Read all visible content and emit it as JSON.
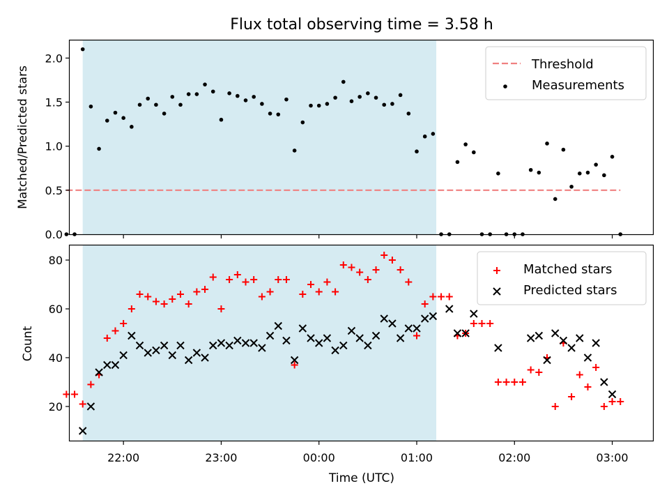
{
  "chart_data": [
    {
      "type": "scatter",
      "title": "Flux total observing time = 3.58 h",
      "xlabel": "",
      "ylabel": "Matched/Predicted stars",
      "ylim": [
        0,
        2.2
      ],
      "xlim": [
        "21:27",
        "03:25"
      ],
      "yticks": [
        "0.0",
        "0.5",
        "1.0",
        "1.5",
        "2.0"
      ],
      "shaded_region": {
        "start": "21:35",
        "end": "01:12",
        "color": "#add8e6"
      },
      "threshold": {
        "name": "Threshold",
        "value": 0.5,
        "x_start": "21:25",
        "x_end": "03:05",
        "color": "#f08080"
      },
      "legend_position": "top-right",
      "series": [
        {
          "name": "Measurements",
          "color": "#000000",
          "marker": "dot",
          "points": [
            [
              "21:25",
              0
            ],
            [
              "21:30",
              0
            ],
            [
              "21:35",
              2.1
            ],
            [
              "21:40",
              1.45
            ],
            [
              "21:45",
              0.97
            ],
            [
              "21:50",
              1.29
            ],
            [
              "21:55",
              1.38
            ],
            [
              "22:00",
              1.32
            ],
            [
              "22:05",
              1.22
            ],
            [
              "22:10",
              1.47
            ],
            [
              "22:15",
              1.54
            ],
            [
              "22:20",
              1.47
            ],
            [
              "22:25",
              1.37
            ],
            [
              "22:30",
              1.56
            ],
            [
              "22:35",
              1.47
            ],
            [
              "22:40",
              1.59
            ],
            [
              "22:45",
              1.59
            ],
            [
              "22:50",
              1.7
            ],
            [
              "22:55",
              1.62
            ],
            [
              "23:00",
              1.3
            ],
            [
              "23:05",
              1.6
            ],
            [
              "23:10",
              1.57
            ],
            [
              "23:15",
              1.52
            ],
            [
              "23:20",
              1.56
            ],
            [
              "23:25",
              1.48
            ],
            [
              "23:30",
              1.37
            ],
            [
              "23:35",
              1.36
            ],
            [
              "23:40",
              1.53
            ],
            [
              "23:45",
              0.95
            ],
            [
              "23:50",
              1.27
            ],
            [
              "23:55",
              1.46
            ],
            [
              "00:00",
              1.46
            ],
            [
              "00:05",
              1.48
            ],
            [
              "00:10",
              1.55
            ],
            [
              "00:15",
              1.73
            ],
            [
              "00:20",
              1.51
            ],
            [
              "00:25",
              1.56
            ],
            [
              "00:30",
              1.6
            ],
            [
              "00:35",
              1.55
            ],
            [
              "00:40",
              1.47
            ],
            [
              "00:45",
              1.48
            ],
            [
              "00:50",
              1.58
            ],
            [
              "00:55",
              1.37
            ],
            [
              "01:00",
              0.94
            ],
            [
              "01:05",
              1.11
            ],
            [
              "01:10",
              1.14
            ],
            [
              "01:15",
              0
            ],
            [
              "01:20",
              0
            ],
            [
              "01:25",
              0.82
            ],
            [
              "01:30",
              1.02
            ],
            [
              "01:35",
              0.93
            ],
            [
              "01:40",
              0
            ],
            [
              "01:45",
              0
            ],
            [
              "01:50",
              0.69
            ],
            [
              "01:55",
              0
            ],
            [
              "02:00",
              0
            ],
            [
              "02:05",
              0
            ],
            [
              "02:10",
              0.73
            ],
            [
              "02:15",
              0.7
            ],
            [
              "02:20",
              1.03
            ],
            [
              "02:25",
              0.4
            ],
            [
              "02:30",
              0.96
            ],
            [
              "02:35",
              0.54
            ],
            [
              "02:40",
              0.69
            ],
            [
              "02:45",
              0.7
            ],
            [
              "02:50",
              0.79
            ],
            [
              "02:55",
              0.67
            ],
            [
              "03:00",
              0.88
            ],
            [
              "03:05",
              0
            ]
          ]
        }
      ]
    },
    {
      "type": "scatter",
      "title": "",
      "xlabel": "Time (UTC)",
      "ylabel": "Count",
      "ylim": [
        6,
        86
      ],
      "xlim": [
        "21:27",
        "03:25"
      ],
      "yticks": [
        "20",
        "40",
        "60",
        "80"
      ],
      "xticks": [
        "22:00",
        "23:00",
        "00:00",
        "01:00",
        "02:00",
        "03:00"
      ],
      "shaded_region": {
        "start": "21:35",
        "end": "01:12",
        "color": "#add8e6"
      },
      "legend_position": "top-right",
      "series": [
        {
          "name": "Matched stars",
          "color": "#ff0000",
          "marker": "plus",
          "points": [
            [
              "21:25",
              25
            ],
            [
              "21:30",
              25
            ],
            [
              "21:35",
              21
            ],
            [
              "21:40",
              29
            ],
            [
              "21:45",
              33
            ],
            [
              "21:50",
              48
            ],
            [
              "21:55",
              51
            ],
            [
              "22:00",
              54
            ],
            [
              "22:05",
              60
            ],
            [
              "22:10",
              66
            ],
            [
              "22:15",
              65
            ],
            [
              "22:20",
              63
            ],
            [
              "22:25",
              62
            ],
            [
              "22:30",
              64
            ],
            [
              "22:35",
              66
            ],
            [
              "22:40",
              62
            ],
            [
              "22:45",
              67
            ],
            [
              "22:50",
              68
            ],
            [
              "22:55",
              73
            ],
            [
              "23:00",
              60
            ],
            [
              "23:05",
              72
            ],
            [
              "23:10",
              74
            ],
            [
              "23:15",
              71
            ],
            [
              "23:20",
              72
            ],
            [
              "23:25",
              65
            ],
            [
              "23:30",
              67
            ],
            [
              "23:35",
              72
            ],
            [
              "23:40",
              72
            ],
            [
              "23:45",
              37
            ],
            [
              "23:50",
              66
            ],
            [
              "23:55",
              70
            ],
            [
              "00:00",
              67
            ],
            [
              "00:05",
              71
            ],
            [
              "00:10",
              67
            ],
            [
              "00:15",
              78
            ],
            [
              "00:20",
              77
            ],
            [
              "00:25",
              75
            ],
            [
              "00:30",
              72
            ],
            [
              "00:35",
              76
            ],
            [
              "00:40",
              82
            ],
            [
              "00:45",
              80
            ],
            [
              "00:50",
              76
            ],
            [
              "00:55",
              71
            ],
            [
              "01:00",
              49
            ],
            [
              "01:05",
              62
            ],
            [
              "01:10",
              65
            ],
            [
              "01:15",
              65
            ],
            [
              "01:20",
              65
            ],
            [
              "01:25",
              49
            ],
            [
              "01:30",
              50
            ],
            [
              "01:35",
              54
            ],
            [
              "01:40",
              54
            ],
            [
              "01:45",
              54
            ],
            [
              "01:50",
              30
            ],
            [
              "01:55",
              30
            ],
            [
              "02:00",
              30
            ],
            [
              "02:05",
              30
            ],
            [
              "02:10",
              35
            ],
            [
              "02:15",
              34
            ],
            [
              "02:20",
              40
            ],
            [
              "02:25",
              20
            ],
            [
              "02:30",
              46
            ],
            [
              "02:35",
              24
            ],
            [
              "02:40",
              33
            ],
            [
              "02:45",
              28
            ],
            [
              "02:50",
              36
            ],
            [
              "02:55",
              20
            ],
            [
              "03:00",
              22
            ],
            [
              "03:05",
              22
            ]
          ]
        },
        {
          "name": "Predicted stars",
          "color": "#000000",
          "marker": "x",
          "points": [
            [
              "21:35",
              10
            ],
            [
              "21:40",
              20
            ],
            [
              "21:45",
              34
            ],
            [
              "21:50",
              37
            ],
            [
              "21:55",
              37
            ],
            [
              "22:00",
              41
            ],
            [
              "22:05",
              49
            ],
            [
              "22:10",
              45
            ],
            [
              "22:15",
              42
            ],
            [
              "22:20",
              43
            ],
            [
              "22:25",
              45
            ],
            [
              "22:30",
              41
            ],
            [
              "22:35",
              45
            ],
            [
              "22:40",
              39
            ],
            [
              "22:45",
              42
            ],
            [
              "22:50",
              40
            ],
            [
              "22:55",
              45
            ],
            [
              "23:00",
              46
            ],
            [
              "23:05",
              45
            ],
            [
              "23:10",
              47
            ],
            [
              "23:15",
              46
            ],
            [
              "23:20",
              46
            ],
            [
              "23:25",
              44
            ],
            [
              "23:30",
              49
            ],
            [
              "23:35",
              53
            ],
            [
              "23:40",
              47
            ],
            [
              "23:45",
              39
            ],
            [
              "23:50",
              52
            ],
            [
              "23:55",
              48
            ],
            [
              "00:00",
              46
            ],
            [
              "00:05",
              48
            ],
            [
              "00:10",
              43
            ],
            [
              "00:15",
              45
            ],
            [
              "00:20",
              51
            ],
            [
              "00:25",
              48
            ],
            [
              "00:30",
              45
            ],
            [
              "00:35",
              49
            ],
            [
              "00:40",
              56
            ],
            [
              "00:45",
              54
            ],
            [
              "00:50",
              48
            ],
            [
              "00:55",
              52
            ],
            [
              "01:00",
              52
            ],
            [
              "01:05",
              56
            ],
            [
              "01:10",
              57
            ],
            [
              "01:20",
              60
            ],
            [
              "01:25",
              50
            ],
            [
              "01:30",
              50
            ],
            [
              "01:35",
              58
            ],
            [
              "01:50",
              44
            ],
            [
              "02:10",
              48
            ],
            [
              "02:15",
              49
            ],
            [
              "02:20",
              39
            ],
            [
              "02:25",
              50
            ],
            [
              "02:30",
              47
            ],
            [
              "02:35",
              44
            ],
            [
              "02:40",
              48
            ],
            [
              "02:45",
              40
            ],
            [
              "02:50",
              46
            ],
            [
              "02:55",
              30
            ],
            [
              "03:00",
              25
            ]
          ]
        }
      ]
    }
  ]
}
